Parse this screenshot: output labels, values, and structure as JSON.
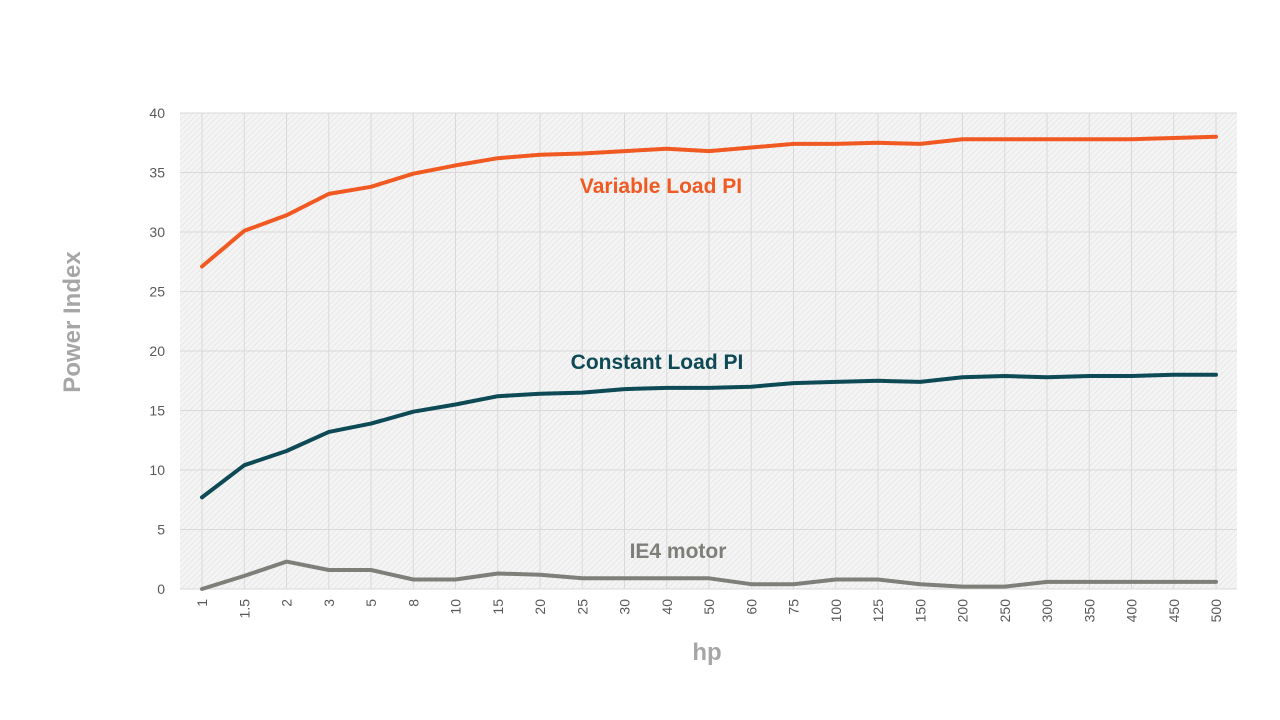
{
  "chart_data": {
    "type": "line",
    "xlabel": "hp",
    "ylabel": "Power Index",
    "ylim": [
      0,
      40
    ],
    "yticks": [
      0,
      5,
      10,
      15,
      20,
      25,
      30,
      35,
      40
    ],
    "grid": true,
    "x": [
      "1",
      "1.5",
      "2",
      "3",
      "5",
      "8",
      "10",
      "15",
      "20",
      "25",
      "30",
      "40",
      "50",
      "60",
      "75",
      "100",
      "125",
      "150",
      "200",
      "250",
      "300",
      "350",
      "400",
      "450",
      "500"
    ],
    "series": [
      {
        "name": "Variable Load PI",
        "color": "#f05a22",
        "values": [
          27.1,
          30.1,
          31.4,
          33.2,
          33.8,
          34.9,
          35.6,
          36.2,
          36.5,
          36.6,
          36.8,
          37.0,
          36.8,
          37.1,
          37.4,
          37.4,
          37.5,
          37.4,
          37.8,
          37.8,
          37.8,
          37.8,
          37.8,
          37.9,
          38.0
        ]
      },
      {
        "name": "Constant Load PI",
        "color": "#0d4a55",
        "values": [
          7.7,
          10.4,
          11.6,
          13.2,
          13.9,
          14.9,
          15.5,
          16.2,
          16.4,
          16.5,
          16.8,
          16.9,
          16.9,
          17.0,
          17.3,
          17.4,
          17.5,
          17.4,
          17.8,
          17.9,
          17.8,
          17.9,
          17.9,
          18.0,
          18.0
        ]
      },
      {
        "name": "IE4 motor",
        "color": "#7f7f7a",
        "values": [
          0.0,
          1.1,
          2.3,
          1.6,
          1.6,
          0.8,
          0.8,
          1.3,
          1.2,
          0.9,
          0.9,
          0.9,
          0.9,
          0.4,
          0.4,
          0.8,
          0.8,
          0.4,
          0.2,
          0.2,
          0.6,
          0.6,
          0.6,
          0.6,
          0.6
        ]
      }
    ]
  }
}
